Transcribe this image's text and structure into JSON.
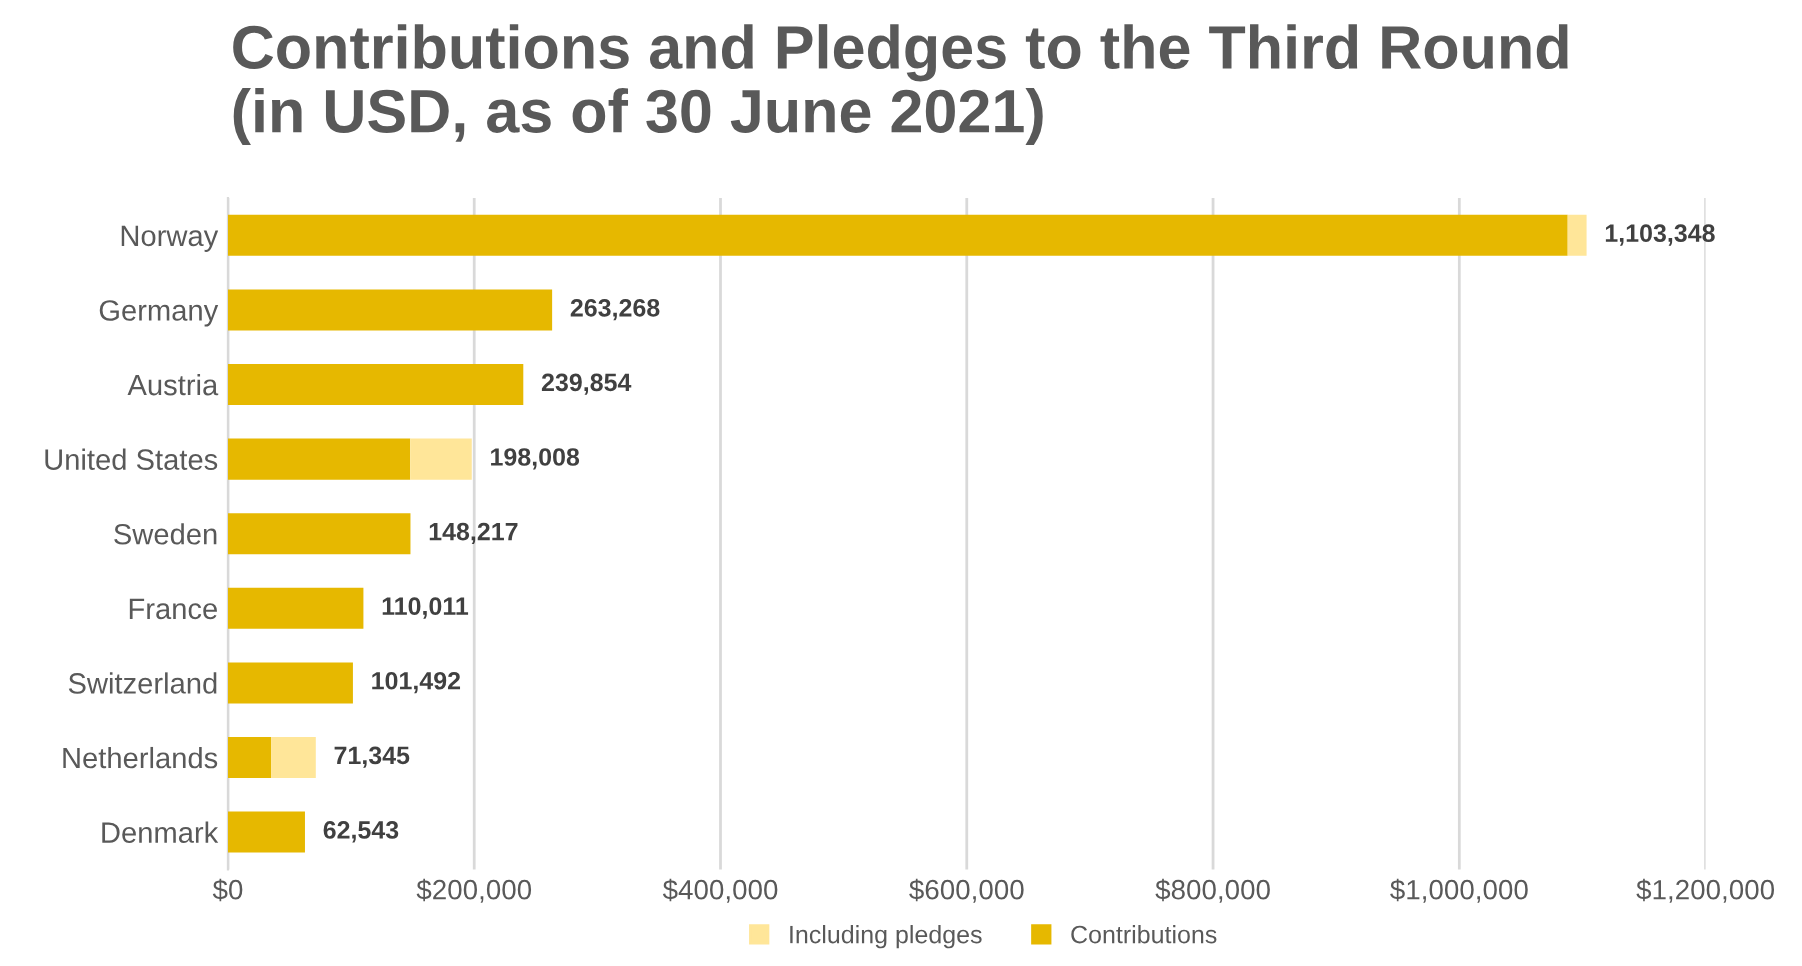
{
  "chart_data": {
    "type": "bar",
    "orientation": "horizontal",
    "stacked": true,
    "title": "Contributions and Pledges to the Third Round\n(in USD, as of 30 June 2021)",
    "categories": [
      "Norway",
      "Germany",
      "Austria",
      "United States",
      "Sweden",
      "France",
      "Switzerland",
      "Netherlands",
      "Denmark"
    ],
    "series": [
      {
        "name": "Contributions",
        "color": "#e6b800",
        "values": [
          1088000,
          263268,
          239854,
          148000,
          148217,
          110011,
          101492,
          35000,
          62543
        ]
      },
      {
        "name": "Including pledges",
        "color": "#ffe699",
        "values": [
          15348,
          null,
          null,
          50008,
          null,
          null,
          null,
          36345,
          null
        ]
      }
    ],
    "totals": [
      "1,103,348",
      "263,268",
      "239,854",
      "198,008",
      "148,217",
      "110,011",
      "101,492",
      "71,345",
      "62,543"
    ],
    "xlim": [
      0,
      1200000
    ],
    "xticks": [
      {
        "value": 0,
        "label": "$0"
      },
      {
        "value": 200000,
        "label": "$200,000"
      },
      {
        "value": 400000,
        "label": "$400,000"
      },
      {
        "value": 600000,
        "label": "$600,000"
      },
      {
        "value": 800000,
        "label": "$800,000"
      },
      {
        "value": 1000000,
        "label": "$1,000,000"
      },
      {
        "value": 1200000,
        "label": "$1,200,000"
      }
    ],
    "grid": "x",
    "legend": "bottom"
  }
}
